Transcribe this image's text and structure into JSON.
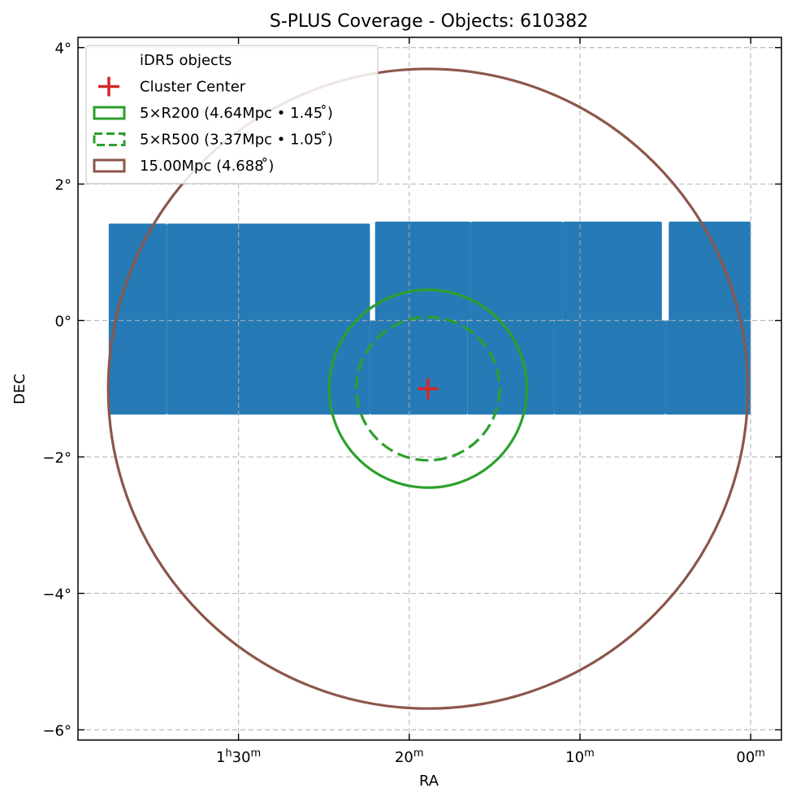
{
  "chart_data": {
    "type": "scatter",
    "title": "S-PLUS Coverage - Objects: 610382",
    "xlabel": "RA",
    "ylabel": "DEC",
    "x_axis": {
      "unit": "RA minutes of time",
      "direction": "decreasing-to-right",
      "range_min": [
        -1.8,
        39.4
      ],
      "ticks": [
        {
          "value": 30,
          "main": "1",
          "sup1": "h",
          "mid": "30",
          "sup2": "m"
        },
        {
          "value": 20,
          "main": "20",
          "sup1": "m",
          "mid": "",
          "sup2": ""
        },
        {
          "value": 10,
          "main": "10",
          "sup1": "m",
          "mid": "",
          "sup2": ""
        },
        {
          "value": 0,
          "main": "00",
          "sup1": "m",
          "mid": "",
          "sup2": ""
        }
      ]
    },
    "y_axis": {
      "unit": "degrees",
      "range": [
        -6.15,
        4.15
      ],
      "ticks": [
        {
          "value": 4,
          "label": "4°"
        },
        {
          "value": 2,
          "label": "2°"
        },
        {
          "value": 0,
          "label": "0°"
        },
        {
          "value": -2,
          "label": "−2°"
        },
        {
          "value": -4,
          "label": "−4°"
        },
        {
          "value": -6,
          "label": "−6°"
        }
      ]
    },
    "grid": true,
    "legend_position": "top-left",
    "cluster_center": {
      "ra_min": 18.9,
      "dec": -1.0
    },
    "series": [
      {
        "name": "iDR5 objects",
        "kind": "survey-fields",
        "color": "#1f77b4",
        "fields": [
          {
            "ra": [
              34.2,
              37.6
            ],
            "dec": [
              -1.38,
              1.42
            ]
          },
          {
            "ra": [
              22.3,
              34.2
            ],
            "dec": [
              -1.38,
              1.42
            ]
          },
          {
            "ra": [
              16.6,
              22.3
            ],
            "dec": [
              -1.38,
              0.0
            ]
          },
          {
            "ra": [
              11.5,
              16.6
            ],
            "dec": [
              -1.38,
              0.0
            ]
          },
          {
            "ra": [
              5.0,
              11.5
            ],
            "dec": [
              -1.38,
              0.0
            ]
          },
          {
            "ra": [
              0.0,
              5.0
            ],
            "dec": [
              -1.38,
              0.0
            ]
          },
          {
            "ra": [
              16.4,
              22.0
            ],
            "dec": [
              0.0,
              1.45
            ]
          },
          {
            "ra": [
              11.0,
              16.4
            ],
            "dec": [
              0.0,
              1.45
            ]
          },
          {
            "ra": [
              5.2,
              11.0
            ],
            "dec": [
              0.0,
              1.45
            ]
          },
          {
            "ra": [
              0.0,
              4.8
            ],
            "dec": [
              0.0,
              1.45
            ]
          }
        ]
      },
      {
        "name": "Cluster Center",
        "kind": "marker",
        "color": "#d62728"
      },
      {
        "name": "5×R200 (4.64Mpc • 1.45$^\\circ$)",
        "label": "5×R200 (4.64Mpc • 1.45 ̊)",
        "kind": "circle",
        "radius_deg": 1.45,
        "color": "#2ca02c",
        "dashed": false
      },
      {
        "name": "5×R500 (3.37Mpc • 1.05$^\\circ$)",
        "label": "5×R500 (3.37Mpc • 1.05 ̊)",
        "kind": "circle",
        "radius_deg": 1.05,
        "color": "#2ca02c",
        "dashed": true
      },
      {
        "name": "15.00Mpc (4.688$^\\circ$)",
        "label": "15.00Mpc (4.688 ̊)",
        "kind": "circle",
        "radius_deg": 4.688,
        "color": "#8c564b",
        "dashed": false
      }
    ]
  }
}
